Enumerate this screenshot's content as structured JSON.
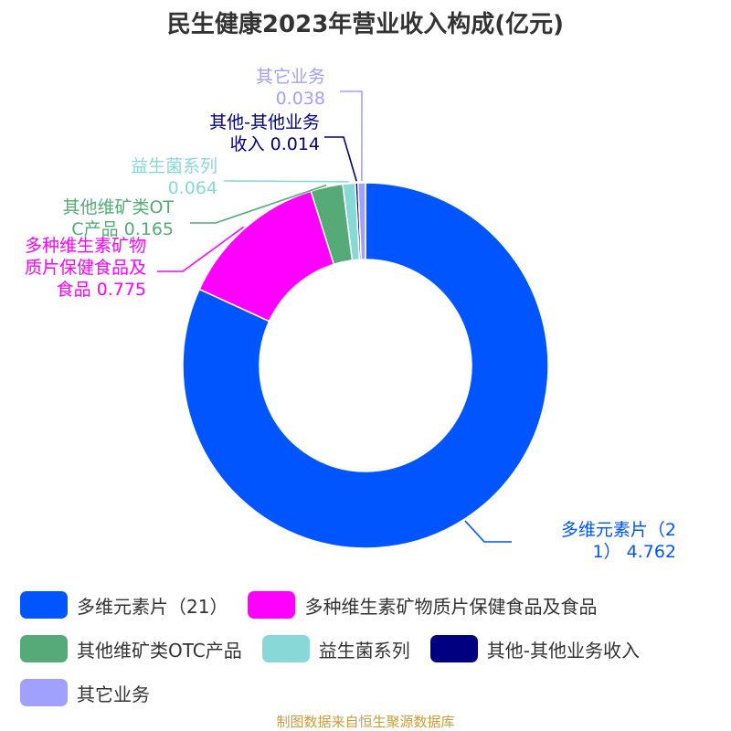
{
  "chart_data": {
    "type": "pie",
    "title": "民生健康2023年营业收入构成(亿元)",
    "categories": [
      "多维元素片（21）",
      "多种维生素矿物质片保健食品及食品",
      "其他维矿类OTC产品",
      "益生菌系列",
      "其他-其他业务收入",
      "其它业务"
    ],
    "values": [
      4.762,
      0.775,
      0.165,
      0.064,
      0.014,
      0.038
    ],
    "value_labels": [
      "4.762",
      "0.775",
      "0.165",
      "0.064",
      "0.014",
      "0.038"
    ],
    "colors": [
      "#0055ff",
      "#ff00ff",
      "#55aa77",
      "#88d8d8",
      "#000080",
      "#a0a0ff"
    ],
    "labels": [
      [
        "多维元素片（2",
        "1） 4.762"
      ],
      [
        "多种维生素矿物",
        "质片保健食品及",
        "食品 0.775"
      ],
      [
        "其他维矿类OT",
        "C产品 0.165"
      ],
      [
        "益生菌系列",
        "0.064"
      ],
      [
        "其他-其他业务",
        "收入 0.014"
      ],
      [
        "其它业务",
        "0.038"
      ]
    ],
    "legend_position": "bottom",
    "donut": true
  },
  "source": "制图数据来自恒生聚源数据库"
}
